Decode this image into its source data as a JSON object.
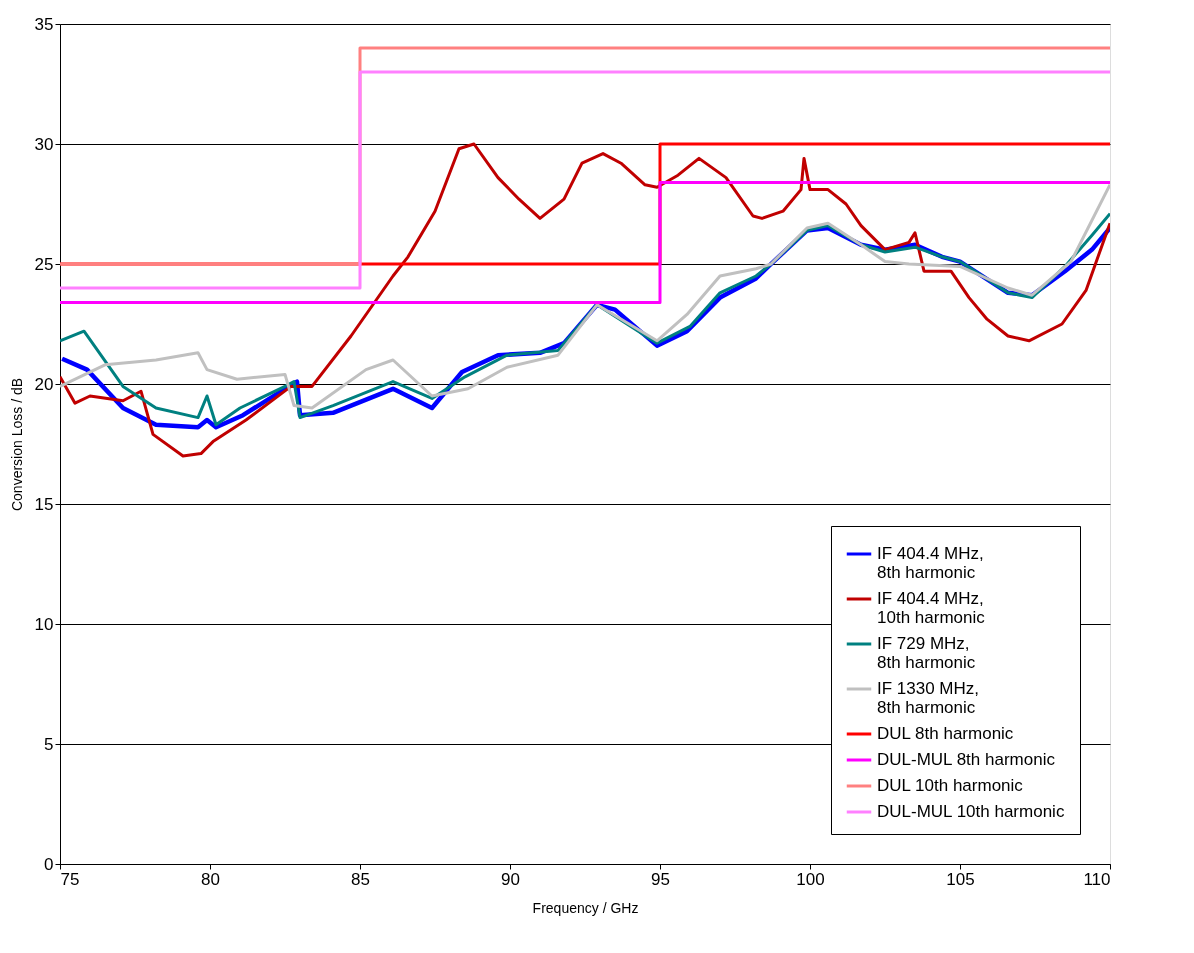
{
  "chart_data": {
    "type": "line",
    "xlabel": "Frequency / GHz",
    "ylabel": "Conversion Loss / dB",
    "xlim": [
      75,
      110
    ],
    "xticks": [
      75,
      80,
      85,
      90,
      95,
      100,
      105,
      110
    ],
    "ylim": [
      0,
      35
    ],
    "yticks": [
      0,
      5,
      10,
      15,
      20,
      25,
      30,
      35
    ],
    "grid": "y",
    "legend": "bottom right",
    "series": [
      {
        "name": "IF 404.4 MHz,\n8th harmonic",
        "color": "#0000ff",
        "x": [
          75.07,
          75.9,
          77.1,
          78.2,
          79.6,
          79.9,
          80.2,
          81.1,
          82.5,
          82.9,
          83.0,
          84.1,
          86.1,
          87.4,
          88.4,
          89.6,
          91.0,
          91.8,
          92.9,
          93.5,
          94.9,
          95.9,
          97.0,
          98.2,
          98.7,
          99.9,
          100.6,
          101.7,
          102.5,
          103.5,
          104.4,
          105.0,
          106.6,
          107.4,
          108.5,
          109.4,
          110
        ],
        "values": [
          21.05,
          20.6,
          19.0,
          18.3,
          18.2,
          18.5,
          18.2,
          18.7,
          19.8,
          20.1,
          18.7,
          18.8,
          19.8,
          19.0,
          20.5,
          21.2,
          21.3,
          21.7,
          23.3,
          23.1,
          21.6,
          22.2,
          23.6,
          24.4,
          25.0,
          26.4,
          26.5,
          25.8,
          25.6,
          25.8,
          25.3,
          25.1,
          23.8,
          23.7,
          24.7,
          25.6,
          26.5
        ]
      },
      {
        "name": "IF 404.4 MHz,\n10th harmonic",
        "color": "#c00000",
        "x": [
          75.0,
          75.5,
          76.0,
          77.1,
          77.7,
          78.1,
          79.1,
          79.7,
          80.1,
          81.2,
          82.7,
          83.4,
          84.7,
          86.1,
          86.6,
          87.5,
          88.3,
          88.8,
          89.6,
          90.3,
          91.0,
          91.8,
          92.4,
          93.1,
          93.7,
          94.5,
          94.9,
          95.6,
          96.3,
          97.2,
          98.1,
          98.4,
          99.1,
          99.7,
          99.8,
          100.0,
          100.6,
          101.2,
          101.7,
          102.5,
          103.3,
          103.5,
          103.8,
          104.7,
          105.3,
          105.9,
          106.6,
          107.3,
          108.4,
          109.2,
          110
        ],
        "values": [
          20.3,
          19.2,
          19.5,
          19.3,
          19.7,
          17.9,
          17.0,
          17.1,
          17.6,
          18.5,
          19.9,
          19.9,
          22.0,
          24.5,
          25.3,
          27.2,
          29.8,
          30.0,
          28.6,
          27.7,
          26.9,
          27.7,
          29.2,
          29.6,
          29.2,
          28.3,
          28.2,
          28.7,
          29.4,
          28.6,
          27.0,
          26.9,
          27.2,
          28.1,
          29.4,
          28.1,
          28.1,
          27.5,
          26.6,
          25.6,
          25.9,
          26.3,
          24.7,
          24.7,
          23.6,
          22.7,
          22.0,
          21.8,
          22.5,
          23.9,
          26.7
        ]
      },
      {
        "name": "IF 729 MHz,\n8th harmonic",
        "color": "#008080",
        "x": [
          75.0,
          75.8,
          77.1,
          78.2,
          79.6,
          79.9,
          80.2,
          81.0,
          82.5,
          82.8,
          83.0,
          84.1,
          86.1,
          87.4,
          88.5,
          89.9,
          91.6,
          92.9,
          94.9,
          96.0,
          97.0,
          98.2,
          98.7,
          99.9,
          100.6,
          101.7,
          102.5,
          103.5,
          104.4,
          105.0,
          106.6,
          107.4,
          108.5,
          109.4,
          110
        ],
        "values": [
          21.8,
          22.2,
          19.9,
          19.0,
          18.6,
          19.5,
          18.3,
          19.0,
          19.9,
          20.1,
          18.6,
          19.1,
          20.1,
          19.4,
          20.3,
          21.2,
          21.4,
          23.3,
          21.7,
          22.4,
          23.8,
          24.5,
          25.0,
          26.4,
          26.6,
          25.8,
          25.5,
          25.7,
          25.3,
          25.1,
          23.8,
          23.6,
          24.9,
          26.2,
          27.1
        ]
      },
      {
        "name": "IF 1330 MHz,\n8th harmonic",
        "color": "#c0c0c0",
        "x": [
          75.0,
          76.5,
          78.2,
          79.6,
          79.9,
          80.9,
          82.5,
          82.8,
          83.4,
          85.2,
          86.1,
          87.4,
          88.6,
          89.9,
          91.6,
          92.9,
          94.9,
          95.9,
          97.0,
          98.2,
          98.7,
          99.9,
          100.6,
          101.7,
          102.5,
          103.3,
          105.0,
          106.6,
          107.4,
          108.7,
          110
        ],
        "values": [
          19.9,
          20.8,
          21.0,
          21.3,
          20.6,
          20.2,
          20.4,
          19.1,
          19.0,
          20.6,
          21.0,
          19.5,
          19.8,
          20.7,
          21.2,
          23.3,
          21.8,
          22.9,
          24.5,
          24.8,
          25.0,
          26.5,
          26.7,
          25.8,
          25.1,
          25.0,
          24.9,
          24.0,
          23.7,
          25.1,
          28.3
        ]
      },
      {
        "name": "DUL 8th harmonic",
        "color": "#ff0000",
        "type": "step",
        "x": [
          75,
          95,
          110
        ],
        "values": [
          25,
          30,
          30
        ]
      },
      {
        "name": "DUL-MUL 8th harmonic",
        "color": "#ff00ff",
        "type": "step",
        "x": [
          75,
          95,
          110
        ],
        "values": [
          23.4,
          28.4,
          28.4
        ]
      },
      {
        "name": "DUL 10th harmonic",
        "color": "#ff8080",
        "type": "step",
        "x": [
          75,
          85,
          110
        ],
        "values": [
          25,
          34,
          34
        ]
      },
      {
        "name": "DUL-MUL 10th harmonic",
        "color": "#ff80ff",
        "type": "step",
        "x": [
          75,
          85,
          110
        ],
        "values": [
          24,
          33,
          33
        ]
      }
    ]
  }
}
